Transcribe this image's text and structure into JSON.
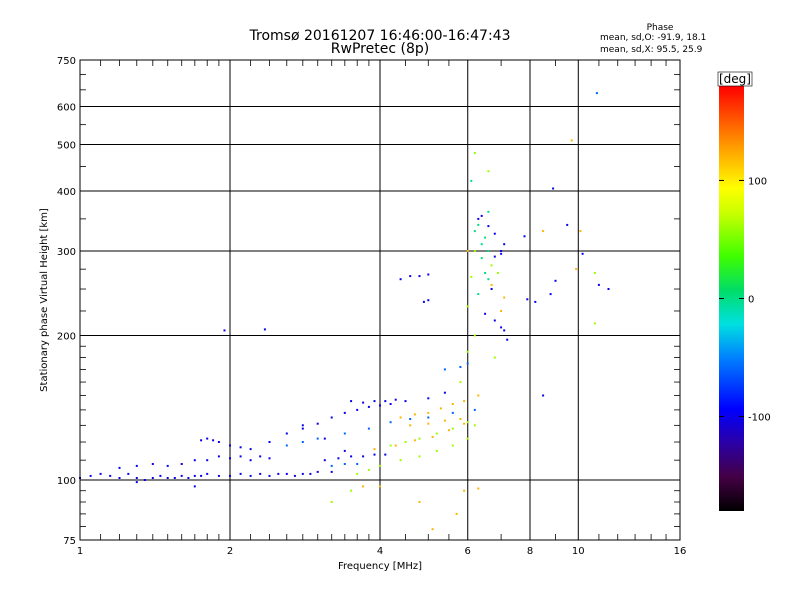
{
  "header": {
    "line1": "Tromsø 20161207 16:46:00-16:47:43",
    "line2": "RwPretec (8p)"
  },
  "phase_box": {
    "title": "Phase",
    "o_line": "mean, sd,O: -91.9, 18.1",
    "x_line": "mean, sd,X:  95.5, 25.9"
  },
  "chart_data": {
    "type": "scatter",
    "title": "Tromsø 20161207 16:46:00-16:47:43",
    "subtitle": "RwPretec (8p)",
    "xlabel": "Frequency [MHz]",
    "ylabel": "Stationary phase Virtual Height [km]",
    "x_scale": "log",
    "y_scale": "log",
    "xlim": [
      1,
      16
    ],
    "ylim": [
      75,
      750
    ],
    "x_ticks": [
      1,
      2,
      4,
      6,
      8,
      10,
      16
    ],
    "x_tick_labels": [
      "1",
      "2",
      "4",
      "6",
      "8",
      "10",
      "16"
    ],
    "y_ticks": [
      75,
      100,
      200,
      300,
      400,
      500,
      600,
      750
    ],
    "y_tick_labels": [
      "75",
      "100",
      "200",
      "300",
      "400",
      "500",
      "600",
      "750"
    ],
    "grid": true,
    "colorbar": {
      "label": "[deg]",
      "range": [
        -180,
        180
      ],
      "ticks": [
        100,
        0,
        -100
      ],
      "tick_labels": [
        "100",
        "0",
        "-100"
      ]
    },
    "series": [
      {
        "name": "",
        "phase_deg": -100,
        "points": [
          [
            1.0,
            101
          ],
          [
            1.05,
            102
          ],
          [
            1.1,
            103
          ],
          [
            1.15,
            102
          ],
          [
            1.2,
            101
          ],
          [
            1.25,
            103
          ],
          [
            1.3,
            101
          ],
          [
            1.35,
            100
          ],
          [
            1.4,
            101
          ],
          [
            1.45,
            102
          ],
          [
            1.5,
            101
          ],
          [
            1.55,
            101
          ],
          [
            1.6,
            102
          ],
          [
            1.65,
            101
          ],
          [
            1.7,
            102
          ],
          [
            1.75,
            102
          ],
          [
            1.8,
            103
          ],
          [
            1.9,
            102
          ],
          [
            2.0,
            102
          ],
          [
            2.1,
            103
          ],
          [
            2.2,
            102
          ],
          [
            2.3,
            103
          ],
          [
            2.4,
            102
          ],
          [
            2.5,
            103
          ],
          [
            2.6,
            103
          ],
          [
            2.7,
            102
          ],
          [
            2.8,
            103
          ],
          [
            2.9,
            103
          ],
          [
            3.0,
            104
          ],
          [
            3.2,
            104
          ],
          [
            1.2,
            106
          ],
          [
            1.3,
            107
          ],
          [
            1.4,
            108
          ],
          [
            1.5,
            107
          ],
          [
            1.6,
            108
          ],
          [
            1.7,
            110
          ],
          [
            1.8,
            110
          ],
          [
            1.9,
            112
          ],
          [
            2.0,
            111
          ],
          [
            2.1,
            112
          ],
          [
            2.2,
            110
          ],
          [
            2.3,
            112
          ],
          [
            2.4,
            111
          ],
          [
            1.75,
            121
          ],
          [
            1.8,
            122
          ],
          [
            1.85,
            121
          ],
          [
            1.9,
            120
          ],
          [
            2.0,
            118
          ],
          [
            2.1,
            117
          ],
          [
            2.2,
            116
          ],
          [
            2.4,
            120
          ],
          [
            2.6,
            125
          ],
          [
            2.8,
            128
          ],
          [
            3.0,
            131
          ],
          [
            3.2,
            135
          ],
          [
            3.4,
            138
          ],
          [
            3.6,
            140
          ],
          [
            3.8,
            142
          ],
          [
            4.0,
            143
          ],
          [
            4.2,
            144
          ],
          [
            4.5,
            146
          ],
          [
            5.0,
            148
          ],
          [
            5.4,
            152
          ],
          [
            3.5,
            146
          ],
          [
            3.7,
            145
          ],
          [
            3.9,
            146
          ],
          [
            4.1,
            146
          ],
          [
            4.3,
            147
          ],
          [
            3.1,
            110
          ],
          [
            3.3,
            111
          ],
          [
            3.5,
            112
          ],
          [
            3.7,
            112
          ],
          [
            3.9,
            113
          ],
          [
            4.1,
            113
          ],
          [
            4.4,
            262
          ],
          [
            4.6,
            266
          ],
          [
            4.8,
            266
          ],
          [
            5.0,
            268
          ],
          [
            4.9,
            235
          ],
          [
            5.0,
            237
          ],
          [
            6.3,
            350
          ],
          [
            6.4,
            355
          ],
          [
            6.6,
            338
          ],
          [
            6.8,
            326
          ],
          [
            7.0,
            300
          ],
          [
            7.1,
            310
          ],
          [
            6.8,
            292
          ],
          [
            7.0,
            296
          ],
          [
            6.7,
            250
          ],
          [
            6.5,
            222
          ],
          [
            6.8,
            215
          ],
          [
            7.0,
            208
          ],
          [
            7.1,
            205
          ],
          [
            7.2,
            196
          ],
          [
            7.8,
            322
          ],
          [
            8.2,
            235
          ],
          [
            7.9,
            238
          ],
          [
            8.8,
            244
          ],
          [
            9.0,
            260
          ],
          [
            9.5,
            340
          ],
          [
            8.5,
            150
          ],
          [
            8.9,
            405
          ],
          [
            10.2,
            296
          ],
          [
            11.0,
            255
          ],
          [
            11.5,
            250
          ],
          [
            1.95,
            205
          ],
          [
            2.35,
            206
          ],
          [
            2.8,
            130
          ],
          [
            3.1,
            122
          ],
          [
            3.4,
            115
          ],
          [
            1.7,
            97
          ],
          [
            1.3,
            99
          ]
        ]
      },
      {
        "name": "",
        "phase_deg": -60,
        "points": [
          [
            2.6,
            118
          ],
          [
            2.8,
            120
          ],
          [
            3.0,
            122
          ],
          [
            3.4,
            125
          ],
          [
            3.8,
            128
          ],
          [
            4.2,
            132
          ],
          [
            4.6,
            134
          ],
          [
            5.0,
            135
          ],
          [
            5.6,
            138
          ],
          [
            6.2,
            140
          ],
          [
            3.2,
            107
          ],
          [
            3.4,
            108
          ],
          [
            3.6,
            108
          ],
          [
            5.4,
            170
          ],
          [
            5.8,
            172
          ],
          [
            6.0,
            175
          ],
          [
            10.9,
            640
          ]
        ]
      },
      {
        "name": "",
        "phase_deg": 0,
        "points": [
          [
            6.2,
            330
          ],
          [
            6.3,
            340
          ],
          [
            6.4,
            310
          ],
          [
            6.5,
            320
          ],
          [
            6.6,
            300
          ],
          [
            6.4,
            290
          ],
          [
            6.5,
            270
          ],
          [
            6.6,
            262
          ],
          [
            6.3,
            244
          ],
          [
            6.1,
            420
          ],
          [
            6.6,
            362
          ]
        ]
      },
      {
        "name": "",
        "phase_deg": 60,
        "points": [
          [
            6.0,
            230
          ],
          [
            6.1,
            265
          ],
          [
            6.2,
            300
          ],
          [
            6.7,
            280
          ],
          [
            6.9,
            270
          ],
          [
            4.2,
            118
          ],
          [
            4.5,
            120
          ],
          [
            4.8,
            122
          ],
          [
            5.2,
            125
          ],
          [
            5.6,
            128
          ],
          [
            6.0,
            132
          ],
          [
            3.6,
            103
          ],
          [
            3.8,
            105
          ],
          [
            4.0,
            107
          ],
          [
            4.4,
            110
          ],
          [
            4.8,
            112
          ],
          [
            5.2,
            115
          ],
          [
            5.6,
            118
          ],
          [
            6.0,
            122
          ],
          [
            6.2,
            130
          ],
          [
            5.8,
            160
          ],
          [
            6.0,
            185
          ],
          [
            6.2,
            200
          ],
          [
            6.8,
            180
          ],
          [
            3.5,
            95
          ],
          [
            3.2,
            90
          ],
          [
            6.2,
            480
          ],
          [
            6.6,
            440
          ],
          [
            10.8,
            270
          ],
          [
            10.8,
            212
          ]
        ]
      },
      {
        "name": "",
        "phase_deg": 120,
        "points": [
          [
            4.4,
            135
          ],
          [
            4.7,
            137
          ],
          [
            5.0,
            138
          ],
          [
            5.3,
            141
          ],
          [
            5.6,
            144
          ],
          [
            5.9,
            146
          ],
          [
            4.6,
            130
          ],
          [
            5.0,
            131
          ],
          [
            5.4,
            133
          ],
          [
            5.8,
            134
          ],
          [
            3.9,
            116
          ],
          [
            4.3,
            118
          ],
          [
            4.7,
            121
          ],
          [
            5.1,
            123
          ],
          [
            5.5,
            127
          ],
          [
            5.9,
            131
          ],
          [
            6.3,
            150
          ],
          [
            6.0,
            300
          ],
          [
            6.7,
            255
          ],
          [
            7.1,
            240
          ],
          [
            7.0,
            225
          ],
          [
            8.5,
            330
          ],
          [
            9.7,
            510
          ],
          [
            9.9,
            275
          ],
          [
            5.7,
            85
          ],
          [
            5.1,
            79
          ],
          [
            4.8,
            90
          ],
          [
            6.3,
            96
          ],
          [
            5.9,
            95
          ],
          [
            4.0,
            97
          ],
          [
            3.7,
            97
          ],
          [
            10.1,
            330
          ]
        ]
      }
    ]
  }
}
